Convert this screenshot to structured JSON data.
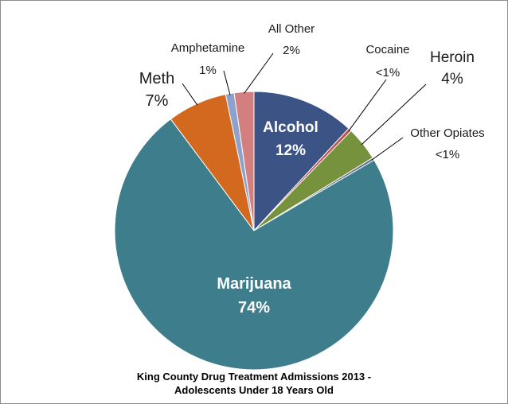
{
  "chart_data": {
    "type": "pie",
    "title_lines": [
      "King County Drug Treatment Admissions 2013 -",
      "Adolescents Under 18 Years Old"
    ],
    "slices": [
      {
        "name": "Alcohol",
        "label": "12%",
        "value": 12,
        "color": "#3b5485"
      },
      {
        "name": "Cocaine",
        "label": "<1%",
        "value": 0.4,
        "color": "#c0504d"
      },
      {
        "name": "Heroin",
        "label": "4%",
        "value": 4,
        "color": "#77923c"
      },
      {
        "name": "Other Opiates",
        "label": "<1%",
        "value": 0.3,
        "color": "#5f6c86"
      },
      {
        "name": "Marijuana",
        "label": "74%",
        "value": 74,
        "color": "#3d7d8c"
      },
      {
        "name": "Meth",
        "label": "7%",
        "value": 7,
        "color": "#d2691e"
      },
      {
        "name": "Amphetamine",
        "label": "1%",
        "value": 1,
        "color": "#8ea0cc"
      },
      {
        "name": "All Other",
        "label": "2%",
        "value": 2.3,
        "color": "#d47f7f"
      }
    ]
  }
}
